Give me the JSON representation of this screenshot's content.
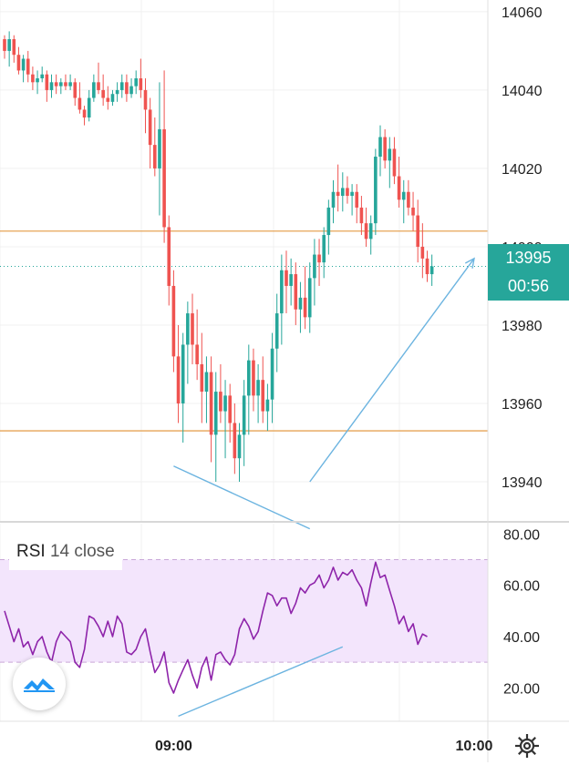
{
  "chart_data": [
    {
      "type": "candlestick",
      "x_ticks": [
        "09:00",
        "10:00"
      ],
      "ylim": [
        13930,
        14063
      ],
      "y_ticks": [
        13940,
        13960,
        13980,
        14000,
        14020,
        14040,
        14060
      ],
      "horizontal_lines": [
        14004,
        13953
      ],
      "current_price": 13995,
      "candles": [
        [
          14053,
          14054,
          14048,
          14050
        ],
        [
          14050,
          14055,
          14046,
          14053
        ],
        [
          14053,
          14054,
          14047,
          14049
        ],
        [
          14049,
          14051,
          14044,
          14045
        ],
        [
          14045,
          14049,
          14042,
          14048
        ],
        [
          14048,
          14050,
          14042,
          14044
        ],
        [
          14044,
          14046,
          14040,
          14042
        ],
        [
          14042,
          14045,
          14039,
          14043
        ],
        [
          14043,
          14046,
          14042,
          14044
        ],
        [
          14044,
          14045,
          14037,
          14040
        ],
        [
          14040,
          14044,
          14038,
          14042
        ],
        [
          14042,
          14044,
          14039,
          14041
        ],
        [
          14041,
          14043,
          14039,
          14042
        ],
        [
          14042,
          14044,
          14040,
          14041
        ],
        [
          14041,
          14044,
          14040,
          14042
        ],
        [
          14042,
          14043,
          14036,
          14038
        ],
        [
          14038,
          14042,
          14034,
          14035
        ],
        [
          14035,
          14036,
          14031,
          14033
        ],
        [
          14033,
          14040,
          14032,
          14038
        ],
        [
          14038,
          14044,
          14037,
          14042
        ],
        [
          14042,
          14047,
          14039,
          14040
        ],
        [
          14040,
          14044,
          14036,
          14038
        ],
        [
          14038,
          14041,
          14035,
          14037
        ],
        [
          14037,
          14040,
          14036,
          14039
        ],
        [
          14039,
          14042,
          14037,
          14040
        ],
        [
          14040,
          14044,
          14038,
          14042
        ],
        [
          14042,
          14044,
          14037,
          14039
        ],
        [
          14039,
          14043,
          14038,
          14041
        ],
        [
          14041,
          14045,
          14039,
          14043
        ],
        [
          14043,
          14048,
          14038,
          14040
        ],
        [
          14040,
          14043,
          14029,
          14035
        ],
        [
          14035,
          14038,
          14020,
          14026
        ],
        [
          14026,
          14033,
          14018,
          14020
        ],
        [
          14020,
          14042,
          14008,
          14030
        ],
        [
          14030,
          14045,
          14001,
          14005
        ],
        [
          14005,
          14008,
          13985,
          13990
        ],
        [
          13990,
          13994,
          13968,
          13972
        ],
        [
          13972,
          13980,
          13955,
          13960
        ],
        [
          13960,
          13978,
          13950,
          13975
        ],
        [
          13975,
          13986,
          13965,
          13983
        ],
        [
          13983,
          13988,
          13970,
          13975
        ],
        [
          13975,
          13984,
          13966,
          13970
        ],
        [
          13970,
          13978,
          13955,
          13963
        ],
        [
          13963,
          13972,
          13955,
          13968
        ],
        [
          13968,
          13972,
          13945,
          13952
        ],
        [
          13952,
          13968,
          13940,
          13963
        ],
        [
          13963,
          13970,
          13955,
          13958
        ],
        [
          13958,
          13966,
          13946,
          13962
        ],
        [
          13962,
          13965,
          13950,
          13955
        ],
        [
          13955,
          13960,
          13942,
          13946
        ],
        [
          13946,
          13955,
          13940,
          13952
        ],
        [
          13952,
          13966,
          13944,
          13962
        ],
        [
          13962,
          13975,
          13952,
          13971
        ],
        [
          13971,
          13974,
          13958,
          13962
        ],
        [
          13962,
          13970,
          13955,
          13966
        ],
        [
          13966,
          13972,
          13955,
          13958
        ],
        [
          13958,
          13965,
          13953,
          13961
        ],
        [
          13961,
          13978,
          13955,
          13974
        ],
        [
          13974,
          13988,
          13968,
          13983
        ],
        [
          13983,
          13998,
          13975,
          13994
        ],
        [
          13994,
          13999,
          13983,
          13990
        ],
        [
          13990,
          13997,
          13985,
          13993
        ],
        [
          13993,
          13996,
          13980,
          13984
        ],
        [
          13984,
          13991,
          13978,
          13987
        ],
        [
          13987,
          13995,
          13979,
          13982
        ],
        [
          13982,
          13996,
          13978,
          13992
        ],
        [
          13992,
          14002,
          13985,
          13998
        ],
        [
          13998,
          14002,
          13990,
          13996
        ],
        [
          13996,
          14005,
          13992,
          14003
        ],
        [
          14003,
          14012,
          13998,
          14010
        ],
        [
          14010,
          14017,
          14006,
          14014
        ],
        [
          14014,
          14021,
          14009,
          14013
        ],
        [
          14013,
          14019,
          14009,
          14015
        ],
        [
          14015,
          14018,
          14011,
          14013
        ],
        [
          14013,
          14016,
          14008,
          14014
        ],
        [
          14014,
          14016,
          14006,
          14010
        ],
        [
          14010,
          14013,
          14003,
          14006
        ],
        [
          14006,
          14010,
          14000,
          14002
        ],
        [
          14002,
          14008,
          13998,
          14006
        ],
        [
          14006,
          14025,
          14003,
          14023
        ],
        [
          14023,
          14031,
          14018,
          14028
        ],
        [
          14028,
          14030,
          14020,
          14022
        ],
        [
          14022,
          14028,
          14015,
          14025
        ],
        [
          14025,
          14028,
          14016,
          14018
        ],
        [
          14018,
          14023,
          14010,
          14012
        ],
        [
          14012,
          14017,
          14006,
          14014
        ],
        [
          14014,
          14017,
          14008,
          14010
        ],
        [
          14010,
          14014,
          14004,
          14008
        ],
        [
          14008,
          14012,
          13996,
          14000
        ],
        [
          14000,
          14006,
          13992,
          13997
        ],
        [
          13997,
          13999,
          13991,
          13993
        ],
        [
          13993,
          13998,
          13990,
          13995
        ]
      ]
    },
    {
      "type": "line",
      "indicator": "RSI",
      "ylim": [
        7,
        84
      ],
      "y_ticks": [
        20,
        40,
        60,
        80
      ],
      "band": [
        30,
        70
      ],
      "values": [
        50,
        44,
        38,
        43,
        36,
        38,
        33,
        38,
        40,
        34,
        30,
        38,
        42,
        40,
        38,
        30,
        28,
        35,
        48,
        47,
        44,
        40,
        46,
        40,
        48,
        45,
        34,
        33,
        35,
        40,
        43,
        34,
        26,
        29,
        34,
        22,
        18,
        23,
        27,
        31,
        25,
        20,
        28,
        32,
        23,
        33,
        34,
        31,
        29,
        33,
        43,
        47,
        44,
        39,
        42,
        50,
        57,
        56,
        52,
        55,
        55,
        49,
        53,
        59,
        57,
        60,
        61,
        64,
        59,
        62,
        67,
        62,
        65,
        64,
        66,
        62,
        59,
        52,
        61,
        69,
        63,
        64,
        58,
        52,
        45,
        48,
        42,
        45,
        37,
        41,
        40
      ],
      "drawings": [
        {
          "kind": "line",
          "pane": "price",
          "start": [
            36,
            13944
          ],
          "end": [
            65,
            13928
          ],
          "color": "#6cb4e0"
        },
        {
          "kind": "arrow",
          "pane": "price",
          "start": [
            65,
            13940
          ],
          "end": [
            100,
            13997
          ],
          "color": "#6cb4e0"
        },
        {
          "kind": "line",
          "pane": "rsi",
          "start": [
            37,
            9
          ],
          "end": [
            72,
            36
          ],
          "color": "#6cb4e0"
        }
      ]
    }
  ],
  "indicator_label": {
    "name": "RSI",
    "params": "14 close"
  },
  "price_badge": {
    "price": "13995",
    "countdown": "00:56"
  },
  "colors": {
    "up": "#26a69a",
    "down": "#ef5350",
    "rsi_line": "#8e24aa",
    "rsi_band": "#f3e5fc",
    "hline": "#e6a456"
  },
  "icons": {
    "logo": "tradingview-logo-icon",
    "settings": "gear-icon"
  }
}
